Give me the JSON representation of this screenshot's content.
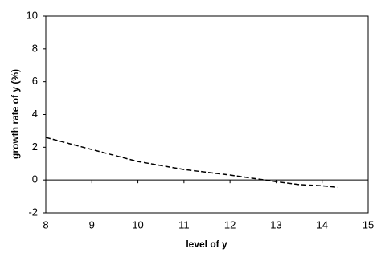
{
  "chart_data": {
    "type": "line",
    "xlabel": "level of y",
    "ylabel": "growth rate of y (%)",
    "x": [
      8,
      9,
      10,
      11,
      12,
      12.5,
      13,
      13.5,
      14,
      14.35
    ],
    "series": [
      {
        "color": "#000000",
        "dash": true,
        "values": [
          2.6,
          1.86,
          1.13,
          0.64,
          0.3,
          0.1,
          -0.1,
          -0.28,
          -0.35,
          -0.45
        ]
      }
    ],
    "xlim": [
      8,
      15
    ],
    "xticks": [
      8,
      9,
      10,
      11,
      12,
      13,
      14,
      15
    ],
    "ylim": [
      -2,
      10
    ],
    "yticks": [
      -2,
      0,
      2,
      4,
      6,
      8,
      10
    ]
  }
}
